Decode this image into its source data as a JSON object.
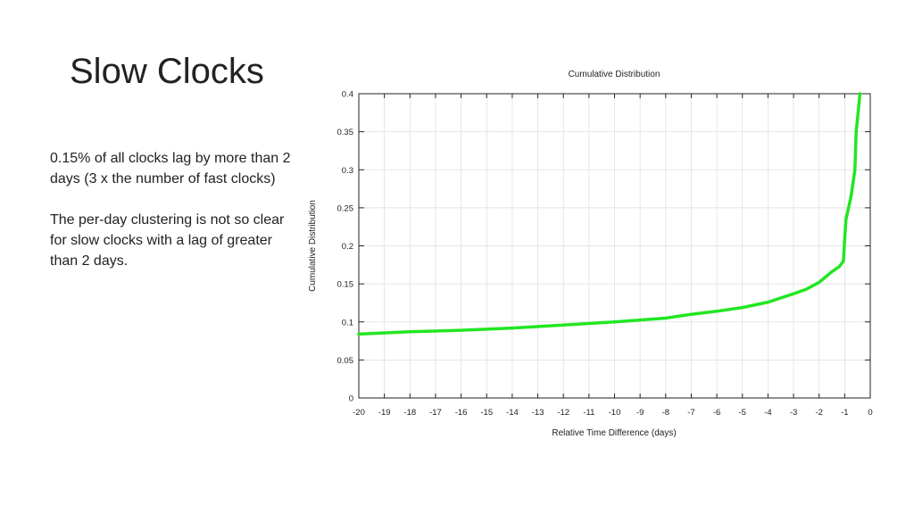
{
  "slide": {
    "title": "Slow Clocks",
    "paragraphs": [
      "0.15% of all clocks lag by more than 2 days (3 x the number of fast clocks)",
      "The per-day clustering is not so clear for slow clocks with a lag of greater than 2 days."
    ]
  },
  "chart_data": {
    "type": "line",
    "title": "Cumulative Distribution",
    "xlabel": "Relative Time Difference (days)",
    "ylabel": "Cumulative Distribution",
    "xlim": [
      -20,
      0
    ],
    "ylim": [
      0,
      0.4
    ],
    "x_ticks": [
      -20,
      -19,
      -18,
      -17,
      -16,
      -15,
      -14,
      -13,
      -12,
      -11,
      -10,
      -9,
      -8,
      -7,
      -6,
      -5,
      -4,
      -3,
      -2,
      -1,
      0
    ],
    "y_ticks": [
      0,
      0.05,
      0.1,
      0.15,
      0.2,
      0.25,
      0.3,
      0.35,
      0.4
    ],
    "grid": true,
    "series": [
      {
        "color": "#22e622",
        "x": [
          -20,
          -18,
          -16,
          -14,
          -12,
          -10,
          -8,
          -7,
          -6,
          -5,
          -4,
          -3,
          -2.5,
          -2,
          -1.5,
          -1.2,
          -1.05,
          -1.0,
          -0.95,
          -0.75,
          -0.6,
          -0.55,
          -0.4
        ],
        "y": [
          0.084,
          0.087,
          0.089,
          0.092,
          0.096,
          0.1,
          0.105,
          0.11,
          0.114,
          0.119,
          0.126,
          0.137,
          0.143,
          0.152,
          0.166,
          0.173,
          0.18,
          0.21,
          0.235,
          0.265,
          0.3,
          0.35,
          0.4
        ]
      }
    ]
  }
}
